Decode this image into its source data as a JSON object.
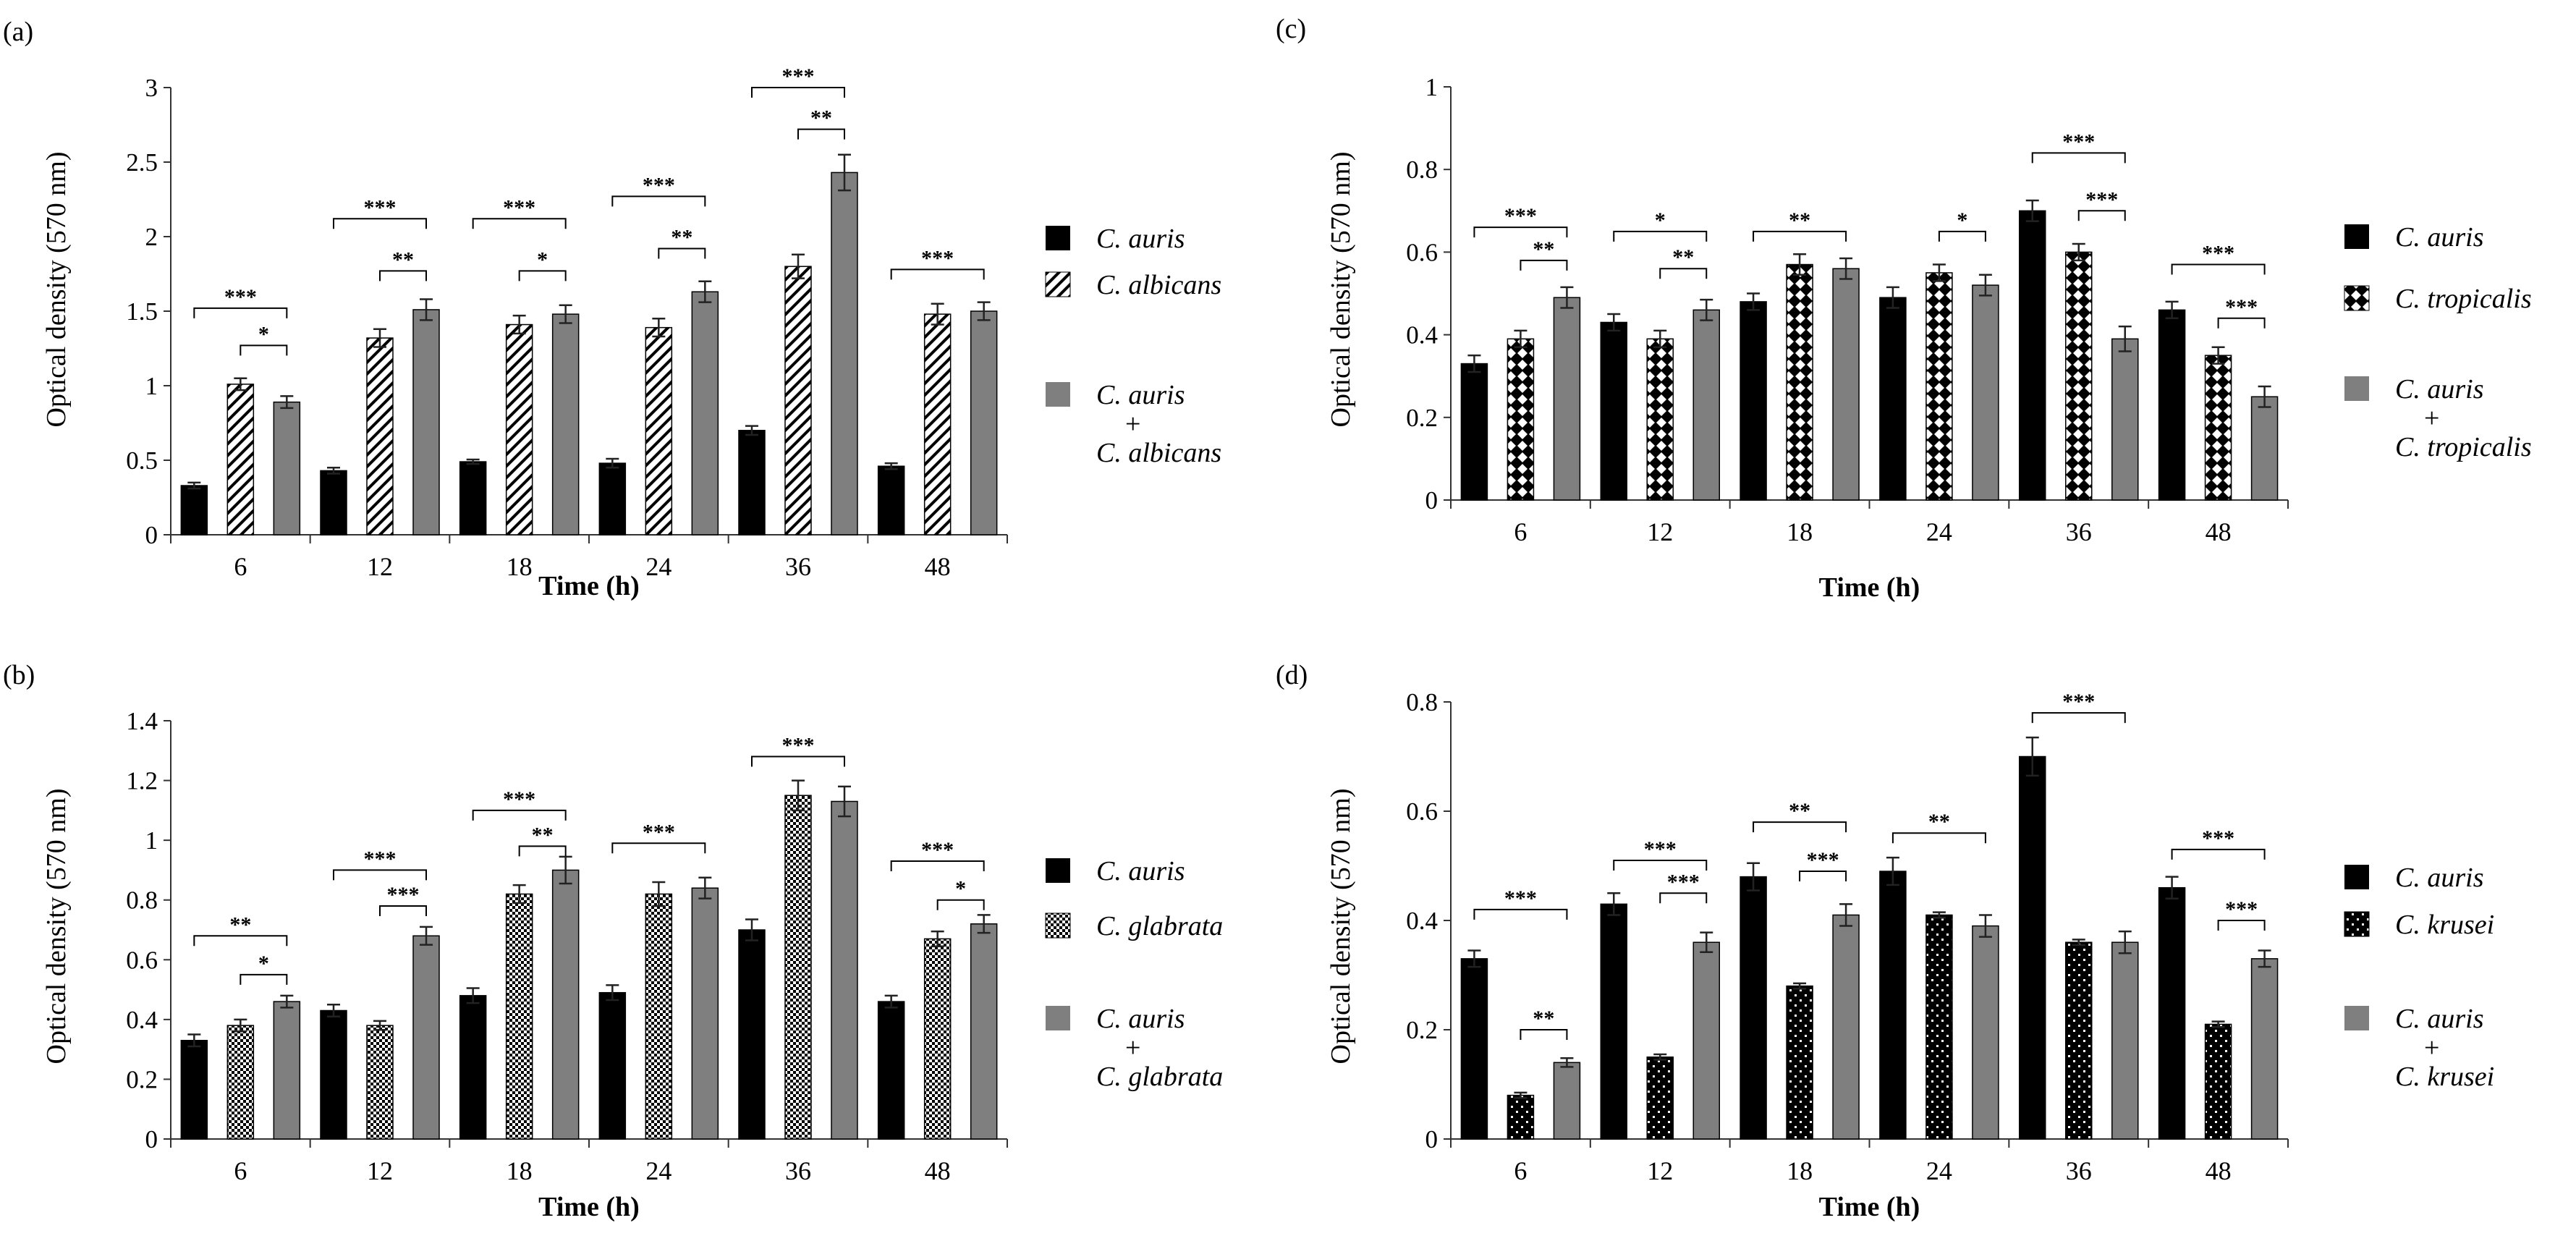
{
  "figure": {
    "panels": [
      "a",
      "c",
      "b",
      "d"
    ]
  },
  "chart_data": [
    {
      "id": "a",
      "panel_label": "(a)",
      "type": "bar",
      "xlabel": "Time (h)",
      "ylabel": "Optical density (570 nm)",
      "ylim": [
        0,
        3
      ],
      "yticks": [
        "0",
        "0.5",
        "1",
        "1.5",
        "2",
        "2.5",
        "3"
      ],
      "categories": [
        "6",
        "12",
        "18",
        "24",
        "36",
        "48"
      ],
      "series": [
        {
          "name": "C. auris",
          "pattern": "solid-black",
          "values": [
            0.33,
            0.43,
            0.49,
            0.48,
            0.7,
            0.46
          ],
          "errors": [
            0.02,
            0.02,
            0.015,
            0.03,
            0.03,
            0.02
          ]
        },
        {
          "name": "C. albicans",
          "pattern": "diagonal-stripes",
          "values": [
            1.01,
            1.32,
            1.41,
            1.39,
            1.8,
            1.48
          ],
          "errors": [
            0.04,
            0.06,
            0.06,
            0.06,
            0.08,
            0.07
          ]
        },
        {
          "name": "C. auris + C. albicans",
          "pattern": "solid-gray",
          "values": [
            0.89,
            1.51,
            1.48,
            1.63,
            2.43,
            1.5
          ],
          "errors": [
            0.04,
            0.07,
            0.06,
            0.07,
            0.12,
            0.06
          ]
        }
      ],
      "legend": [
        {
          "lines": [
            "C. auris"
          ],
          "pattern": "solid-black"
        },
        {
          "lines": [
            "C. albicans"
          ],
          "pattern": "diagonal-stripes"
        },
        {
          "lines": [
            "C. auris",
            "+",
            "C. albicans"
          ],
          "pattern": "solid-gray"
        }
      ],
      "significance": [
        {
          "group": 0,
          "from": 0,
          "to": 2,
          "label": "***",
          "y": 1.52
        },
        {
          "group": 0,
          "from": 1,
          "to": 2,
          "label": "*",
          "y": 1.27
        },
        {
          "group": 1,
          "from": 0,
          "to": 2,
          "label": "***",
          "y": 2.12
        },
        {
          "group": 1,
          "from": 1,
          "to": 2,
          "label": "**",
          "y": 1.77
        },
        {
          "group": 2,
          "from": 0,
          "to": 2,
          "label": "***",
          "y": 2.12
        },
        {
          "group": 2,
          "from": 1,
          "to": 2,
          "label": "*",
          "y": 1.77
        },
        {
          "group": 3,
          "from": 0,
          "to": 2,
          "label": "***",
          "y": 2.27
        },
        {
          "group": 3,
          "from": 1,
          "to": 2,
          "label": "**",
          "y": 1.92
        },
        {
          "group": 4,
          "from": 0,
          "to": 2,
          "label": "***",
          "y": 3.0
        },
        {
          "group": 4,
          "from": 1,
          "to": 2,
          "label": "**",
          "y": 2.72
        },
        {
          "group": 5,
          "from": 0,
          "to": 2,
          "label": "***",
          "y": 1.78
        }
      ]
    },
    {
      "id": "c",
      "panel_label": "(c)",
      "type": "bar",
      "xlabel": "Time (h)",
      "ylabel": "Optical density (570 nm)",
      "ylim": [
        0,
        1
      ],
      "yticks": [
        "0",
        "0.2",
        "0.4",
        "0.6",
        "0.8",
        "1"
      ],
      "categories": [
        "6",
        "12",
        "18",
        "24",
        "36",
        "48"
      ],
      "series": [
        {
          "name": "C. auris",
          "pattern": "solid-black",
          "values": [
            0.33,
            0.43,
            0.48,
            0.49,
            0.7,
            0.46
          ],
          "errors": [
            0.02,
            0.02,
            0.02,
            0.025,
            0.025,
            0.02
          ]
        },
        {
          "name": "C. tropicalis",
          "pattern": "diamond-checker",
          "values": [
            0.39,
            0.39,
            0.57,
            0.55,
            0.6,
            0.35
          ],
          "errors": [
            0.02,
            0.02,
            0.025,
            0.02,
            0.02,
            0.02
          ]
        },
        {
          "name": "C. auris + C. tropicalis",
          "pattern": "solid-gray",
          "values": [
            0.49,
            0.46,
            0.56,
            0.52,
            0.39,
            0.25
          ],
          "errors": [
            0.025,
            0.025,
            0.025,
            0.025,
            0.03,
            0.025
          ]
        }
      ],
      "legend": [
        {
          "lines": [
            "C. auris"
          ],
          "pattern": "solid-black"
        },
        {
          "lines": [
            "C. tropicalis"
          ],
          "pattern": "diamond-checker"
        },
        {
          "lines": [
            "C. auris",
            "+",
            "C. tropicalis"
          ],
          "pattern": "solid-gray"
        }
      ],
      "significance": [
        {
          "group": 0,
          "from": 0,
          "to": 2,
          "label": "***",
          "y": 0.66
        },
        {
          "group": 0,
          "from": 1,
          "to": 2,
          "label": "**",
          "y": 0.58
        },
        {
          "group": 1,
          "from": 0,
          "to": 2,
          "label": "*",
          "y": 0.65
        },
        {
          "group": 1,
          "from": 1,
          "to": 2,
          "label": "**",
          "y": 0.56
        },
        {
          "group": 2,
          "from": 0,
          "to": 2,
          "label": "**",
          "y": 0.65
        },
        {
          "group": 3,
          "from": 1,
          "to": 2,
          "label": "*",
          "y": 0.65
        },
        {
          "group": 4,
          "from": 0,
          "to": 2,
          "label": "***",
          "y": 0.84
        },
        {
          "group": 4,
          "from": 1,
          "to": 2,
          "label": "***",
          "y": 0.7
        },
        {
          "group": 5,
          "from": 0,
          "to": 2,
          "label": "***",
          "y": 0.57
        },
        {
          "group": 5,
          "from": 1,
          "to": 2,
          "label": "***",
          "y": 0.44
        }
      ]
    },
    {
      "id": "b",
      "panel_label": "(b)",
      "type": "bar",
      "xlabel": "Time (h)",
      "ylabel": "Optical density (570 nm)",
      "ylim": [
        0,
        1.4
      ],
      "yticks": [
        "0",
        "0.2",
        "0.4",
        "0.6",
        "0.8",
        "1",
        "1.2",
        "1.4"
      ],
      "categories": [
        "6",
        "12",
        "18",
        "24",
        "36",
        "48"
      ],
      "series": [
        {
          "name": "C. auris",
          "pattern": "solid-black",
          "values": [
            0.33,
            0.43,
            0.48,
            0.49,
            0.7,
            0.46
          ],
          "errors": [
            0.02,
            0.02,
            0.025,
            0.025,
            0.035,
            0.02
          ]
        },
        {
          "name": "C. glabrata",
          "pattern": "fine-checker",
          "values": [
            0.38,
            0.38,
            0.82,
            0.82,
            1.15,
            0.67
          ],
          "errors": [
            0.02,
            0.015,
            0.03,
            0.04,
            0.05,
            0.025
          ]
        },
        {
          "name": "C. auris + C. glabrata",
          "pattern": "solid-gray",
          "values": [
            0.46,
            0.68,
            0.9,
            0.84,
            1.13,
            0.72
          ],
          "errors": [
            0.02,
            0.03,
            0.045,
            0.035,
            0.05,
            0.03
          ]
        }
      ],
      "legend": [
        {
          "lines": [
            "C. auris"
          ],
          "pattern": "solid-black"
        },
        {
          "lines": [
            "C. glabrata"
          ],
          "pattern": "fine-checker"
        },
        {
          "lines": [
            "C. auris",
            "+",
            "C. glabrata"
          ],
          "pattern": "solid-gray"
        }
      ],
      "significance": [
        {
          "group": 0,
          "from": 0,
          "to": 2,
          "label": "**",
          "y": 0.68
        },
        {
          "group": 0,
          "from": 1,
          "to": 2,
          "label": "*",
          "y": 0.55
        },
        {
          "group": 1,
          "from": 0,
          "to": 2,
          "label": "***",
          "y": 0.9
        },
        {
          "group": 1,
          "from": 1,
          "to": 2,
          "label": "***",
          "y": 0.78
        },
        {
          "group": 2,
          "from": 0,
          "to": 2,
          "label": "***",
          "y": 1.1
        },
        {
          "group": 2,
          "from": 1,
          "to": 2,
          "label": "**",
          "y": 0.98
        },
        {
          "group": 3,
          "from": 0,
          "to": 2,
          "label": "***",
          "y": 0.99
        },
        {
          "group": 4,
          "from": 0,
          "to": 2,
          "label": "***",
          "y": 1.28
        },
        {
          "group": 5,
          "from": 0,
          "to": 2,
          "label": "***",
          "y": 0.93
        },
        {
          "group": 5,
          "from": 1,
          "to": 2,
          "label": "*",
          "y": 0.8
        }
      ]
    },
    {
      "id": "d",
      "panel_label": "(d)",
      "type": "bar",
      "xlabel": "Time (h)",
      "ylabel": "Optical density (570 nm)",
      "ylim": [
        0,
        0.8
      ],
      "yticks": [
        "0",
        "0.2",
        "0.4",
        "0.6",
        "0.8"
      ],
      "categories": [
        "6",
        "12",
        "18",
        "24",
        "36",
        "48"
      ],
      "series": [
        {
          "name": "C. auris",
          "pattern": "solid-black",
          "values": [
            0.33,
            0.43,
            0.48,
            0.49,
            0.7,
            0.46
          ],
          "errors": [
            0.015,
            0.02,
            0.025,
            0.025,
            0.035,
            0.02
          ]
        },
        {
          "name": "C. krusei",
          "pattern": "sparse-dots",
          "values": [
            0.08,
            0.15,
            0.28,
            0.41,
            0.36,
            0.21
          ],
          "errors": [
            0.005,
            0.005,
            0.005,
            0.005,
            0.005,
            0.005
          ]
        },
        {
          "name": "C. auris + C. krusei",
          "pattern": "solid-gray",
          "values": [
            0.14,
            0.36,
            0.41,
            0.39,
            0.36,
            0.33
          ],
          "errors": [
            0.008,
            0.018,
            0.02,
            0.02,
            0.02,
            0.015
          ]
        }
      ],
      "legend": [
        {
          "lines": [
            "C. auris"
          ],
          "pattern": "solid-black"
        },
        {
          "lines": [
            "C. krusei"
          ],
          "pattern": "sparse-dots"
        },
        {
          "lines": [
            "C. auris",
            "+",
            "C. krusei"
          ],
          "pattern": "solid-gray"
        }
      ],
      "significance": [
        {
          "group": 0,
          "from": 0,
          "to": 2,
          "label": "***",
          "y": 0.42
        },
        {
          "group": 0,
          "from": 1,
          "to": 2,
          "label": "**",
          "y": 0.2
        },
        {
          "group": 1,
          "from": 0,
          "to": 2,
          "label": "***",
          "y": 0.51
        },
        {
          "group": 1,
          "from": 1,
          "to": 2,
          "label": "***",
          "y": 0.45
        },
        {
          "group": 2,
          "from": 0,
          "to": 2,
          "label": "**",
          "y": 0.58
        },
        {
          "group": 2,
          "from": 1,
          "to": 2,
          "label": "***",
          "y": 0.49
        },
        {
          "group": 3,
          "from": 0,
          "to": 2,
          "label": "**",
          "y": 0.56
        },
        {
          "group": 4,
          "from": 0,
          "to": 2,
          "label": "***",
          "y": 0.78
        },
        {
          "group": 5,
          "from": 0,
          "to": 2,
          "label": "***",
          "y": 0.53
        },
        {
          "group": 5,
          "from": 1,
          "to": 2,
          "label": "***",
          "y": 0.4
        }
      ]
    }
  ],
  "colors": {
    "black_bar": "#000000",
    "gray_bar": "#7f7f7f",
    "axis": "#333333",
    "error_bar": "#222222",
    "text": "#000000"
  }
}
